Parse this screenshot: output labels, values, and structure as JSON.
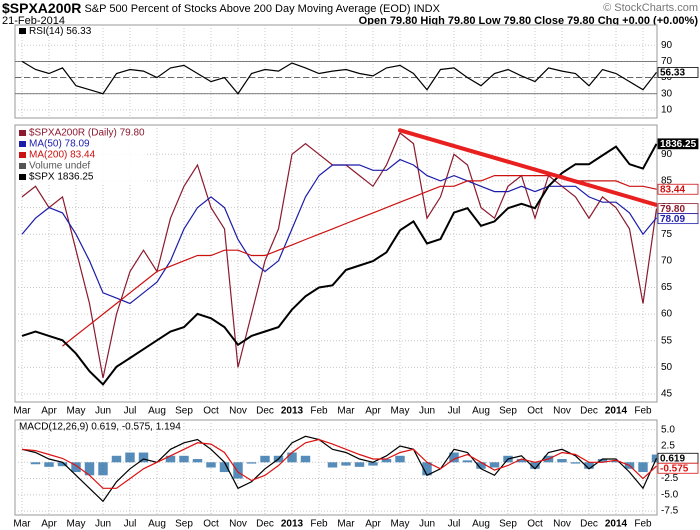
{
  "header": {
    "symbol": "$SPXA200R",
    "title": "S&P 500 Percent of Stocks Above 200 Day Moving Average (EOD)",
    "exchange": "INDX",
    "date": "21-Feb-2014",
    "ohlc": "Open 79.80 High 79.80 Low 79.80 Close 79.80 Chg +0.00 (+0.00%)",
    "credit": "© StockCharts.com"
  },
  "chart_data": [
    {
      "type": "line",
      "series": [
        {
          "name": "RSI(14) 56.33",
          "color": "#000000",
          "values": [
            70,
            60,
            55,
            62,
            40,
            35,
            30,
            55,
            60,
            58,
            50,
            62,
            65,
            55,
            45,
            50,
            30,
            55,
            60,
            58,
            68,
            62,
            55,
            58,
            60,
            55,
            52,
            62,
            65,
            55,
            35,
            60,
            62,
            50,
            40,
            55,
            60,
            52,
            45,
            62,
            58,
            55,
            40,
            60,
            55,
            45,
            35,
            56.33
          ]
        }
      ],
      "ylim": [
        0,
        115
      ],
      "yticks": [
        10,
        30,
        50,
        70,
        90
      ],
      "ref_lines": [
        70,
        50,
        30
      ],
      "grid": true
    },
    {
      "type": "line",
      "categories": [
        "Mar",
        null,
        "Apr",
        null,
        "May",
        null,
        "Jun",
        null,
        "Jul",
        null,
        "Aug",
        null,
        "Sep",
        null,
        "Oct",
        null,
        "Nov",
        null,
        "Dec",
        null,
        "2013",
        null,
        "Feb",
        null,
        "Mar",
        null,
        "Apr",
        null,
        "May",
        null,
        "Jun",
        null,
        "Jul",
        null,
        "Aug",
        null,
        "Sep",
        null,
        "Oct",
        null,
        "Nov",
        null,
        "Dec",
        null,
        "2014",
        null,
        "Feb",
        null
      ],
      "series": [
        {
          "name": "$SPXA200R (Daily) 79.80",
          "color": "#8b1a2e",
          "values": [
            82,
            84,
            80,
            82,
            72,
            62,
            48,
            60,
            68,
            72,
            68,
            78,
            84,
            88,
            80,
            76,
            50,
            60,
            70,
            76,
            90,
            92,
            90,
            88,
            88,
            86,
            84,
            88,
            94,
            92,
            78,
            82,
            90,
            88,
            80,
            78,
            84,
            86,
            78,
            86,
            84,
            82,
            78,
            82,
            80,
            76,
            62,
            79.8
          ],
          "value_labels": [
            null,
            null,
            null,
            null,
            null,
            null,
            null,
            null,
            null,
            null,
            null,
            null,
            null,
            null,
            null,
            null,
            null,
            null,
            null,
            null,
            null,
            null,
            null,
            null,
            null,
            null,
            null,
            null,
            null,
            null,
            null,
            null,
            null,
            null,
            null,
            null,
            null,
            null,
            null,
            null,
            null,
            null,
            null,
            null,
            null,
            null,
            null,
            "79.80"
          ]
        },
        {
          "name": "MA(50) 78.09",
          "color": "#1c1caa",
          "values": [
            75,
            78,
            80,
            79,
            75,
            70,
            64,
            63,
            62,
            64,
            66,
            70,
            76,
            80,
            82,
            80,
            74,
            70,
            68,
            70,
            76,
            82,
            86,
            88,
            88,
            88,
            87,
            87,
            89,
            88,
            86,
            85,
            86,
            85,
            84,
            83,
            83,
            84,
            83,
            84,
            84,
            84,
            82,
            81,
            81,
            79,
            75,
            78.09
          ]
        },
        {
          "name": "MA(200) 83.44",
          "color": "#cc1111",
          "values": [
            null,
            null,
            null,
            54,
            56,
            58,
            60,
            62,
            64,
            66,
            68,
            69,
            70,
            71,
            71,
            72,
            72,
            71,
            71,
            72,
            73,
            74,
            75,
            76,
            77,
            78,
            79,
            80,
            81,
            82,
            83,
            84,
            84,
            85,
            85,
            86,
            86,
            86,
            86,
            86,
            86,
            85,
            85,
            85,
            85,
            84,
            84,
            83.44
          ]
        },
        {
          "name": "$SPX 1836.25",
          "color": "#000000",
          "axis": "y2",
          "values": [
            1400,
            1410,
            1400,
            1390,
            1360,
            1320,
            1290,
            1330,
            1350,
            1370,
            1390,
            1410,
            1420,
            1450,
            1440,
            1420,
            1380,
            1400,
            1410,
            1420,
            1460,
            1490,
            1510,
            1515,
            1550,
            1560,
            1570,
            1590,
            1640,
            1660,
            1610,
            1620,
            1680,
            1690,
            1650,
            1660,
            1690,
            1700,
            1690,
            1740,
            1770,
            1790,
            1790,
            1810,
            1830,
            1790,
            1780,
            1836.25
          ]
        }
      ],
      "ylim": [
        43.5,
        95.5
      ],
      "yticks": [
        45,
        50,
        55,
        60,
        65,
        70,
        75,
        80,
        85,
        90
      ],
      "y2lim": [
        1250,
        1879
      ],
      "legend": "top-left",
      "legend_notes": [
        "Volume undef"
      ],
      "annotations": [
        {
          "type": "trendline",
          "x": [
            28,
            47
          ],
          "values": [
            94.5,
            80.5
          ],
          "color": "#e8201f"
        }
      ],
      "grid": true
    },
    {
      "type": "line",
      "title": "MACD(12,26,9) 0.619, -0.575, 1.194",
      "categories": [
        "Mar",
        null,
        "Apr",
        null,
        "May",
        null,
        "Jun",
        null,
        "Jul",
        null,
        "Aug",
        null,
        "Sep",
        null,
        "Oct",
        null,
        "Nov",
        null,
        "Dec",
        null,
        "2013",
        null,
        "Feb",
        null,
        "Mar",
        null,
        "Apr",
        null,
        "May",
        null,
        "Jun",
        null,
        "Jul",
        null,
        "Aug",
        null,
        "Sep",
        null,
        "Oct",
        null,
        "Nov",
        null,
        "Dec",
        null,
        "2014",
        null,
        "Feb",
        null
      ],
      "series": [
        {
          "name": "MACD",
          "color": "#000000",
          "values": [
            2,
            1.5,
            0.5,
            0,
            -2,
            -4,
            -6,
            -3,
            -1,
            0.5,
            0,
            2,
            3,
            3.5,
            2,
            0,
            -4,
            -3,
            -1,
            0.5,
            3,
            4,
            3.5,
            2,
            1.5,
            0.5,
            0,
            1,
            2.5,
            2,
            -2,
            -1,
            2,
            1.5,
            -1,
            -2,
            0.5,
            1,
            -1,
            1.5,
            2,
            1,
            -1,
            0.5,
            0.5,
            -1.5,
            -4,
            0.619
          ]
        },
        {
          "name": "Signal",
          "color": "#dd1111",
          "values": [
            2,
            1.8,
            1.2,
            0.6,
            -0.5,
            -2,
            -4,
            -4,
            -2.5,
            -1,
            0,
            1,
            2,
            3,
            2.8,
            1.5,
            -1.5,
            -2.8,
            -2,
            -0.5,
            1.5,
            3,
            3.5,
            2.8,
            2,
            1.2,
            0.5,
            0.5,
            1.5,
            2,
            0,
            -1,
            0.5,
            1.2,
            0,
            -1.2,
            -0.5,
            0.5,
            0,
            0.5,
            1.5,
            1.2,
            0,
            0,
            0.3,
            -0.5,
            -2.5,
            -0.575
          ]
        },
        {
          "name": "Histogram",
          "type": "bar",
          "color": "#2a6fa8",
          "values": [
            0,
            -0.3,
            -0.7,
            -0.6,
            -1.5,
            -2,
            -2,
            1,
            1.5,
            1.5,
            0,
            1,
            1,
            0.5,
            -0.8,
            -1.5,
            -2.5,
            -0.2,
            1,
            1,
            1.5,
            1,
            0,
            -0.8,
            -0.5,
            -0.7,
            -0.5,
            0.5,
            1,
            0,
            -2,
            0,
            1.5,
            0.3,
            -1,
            -0.8,
            1,
            0.5,
            -1,
            1,
            0.5,
            -0.2,
            -1,
            0.5,
            0.2,
            -1,
            -1.5,
            1.194
          ]
        }
      ],
      "ylim": [
        -8.1,
        6.5
      ],
      "yticks": [
        {
          "value": 5,
          "label": "5.0"
        },
        {
          "value": 2.5,
          "label": "2.5"
        },
        {
          "value": 0,
          "label": "0.0"
        },
        {
          "value": -2.5,
          "label": "-2.5"
        },
        {
          "value": -5,
          "label": "-5.0"
        },
        {
          "value": -7.5,
          "label": "-7.5"
        }
      ],
      "grid": true
    }
  ]
}
